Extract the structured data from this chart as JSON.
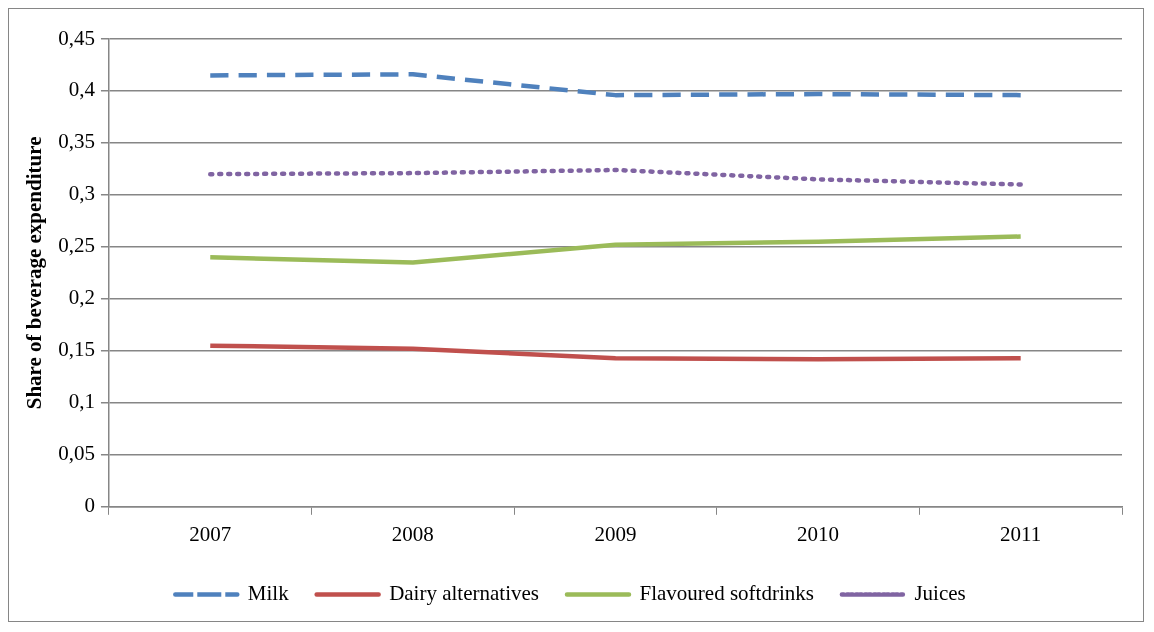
{
  "chart_data": {
    "type": "line",
    "ylabel": "Share of beverage expenditure",
    "categories": [
      "2007",
      "2008",
      "2009",
      "2010",
      "2011"
    ],
    "series": [
      {
        "name": "Milk",
        "color": "#4f81bd",
        "line_style": "dashed",
        "values": [
          0.415,
          0.416,
          0.396,
          0.397,
          0.396
        ]
      },
      {
        "name": "Dairy alternatives",
        "color": "#c0504d",
        "line_style": "solid",
        "values": [
          0.155,
          0.152,
          0.143,
          0.142,
          0.143
        ]
      },
      {
        "name": "Flavoured softdrinks",
        "color": "#9bbb59",
        "line_style": "solid",
        "values": [
          0.24,
          0.235,
          0.252,
          0.255,
          0.26
        ]
      },
      {
        "name": "Juices",
        "color": "#8064a2",
        "line_style": "dotted",
        "values": [
          0.32,
          0.321,
          0.324,
          0.315,
          0.31
        ]
      }
    ],
    "ylim": [
      0,
      0.45
    ],
    "yticks": [
      {
        "value": 0,
        "label": "0"
      },
      {
        "value": 0.05,
        "label": "0,05"
      },
      {
        "value": 0.1,
        "label": "0,1"
      },
      {
        "value": 0.15,
        "label": "0,15"
      },
      {
        "value": 0.2,
        "label": "0,2"
      },
      {
        "value": 0.25,
        "label": "0,25"
      },
      {
        "value": 0.3,
        "label": "0,3"
      },
      {
        "value": 0.35,
        "label": "0,35"
      },
      {
        "value": 0.4,
        "label": "0,4"
      },
      {
        "value": 0.45,
        "label": "0,45"
      }
    ],
    "grid": "y",
    "legend": "bottom",
    "marker": "none"
  }
}
